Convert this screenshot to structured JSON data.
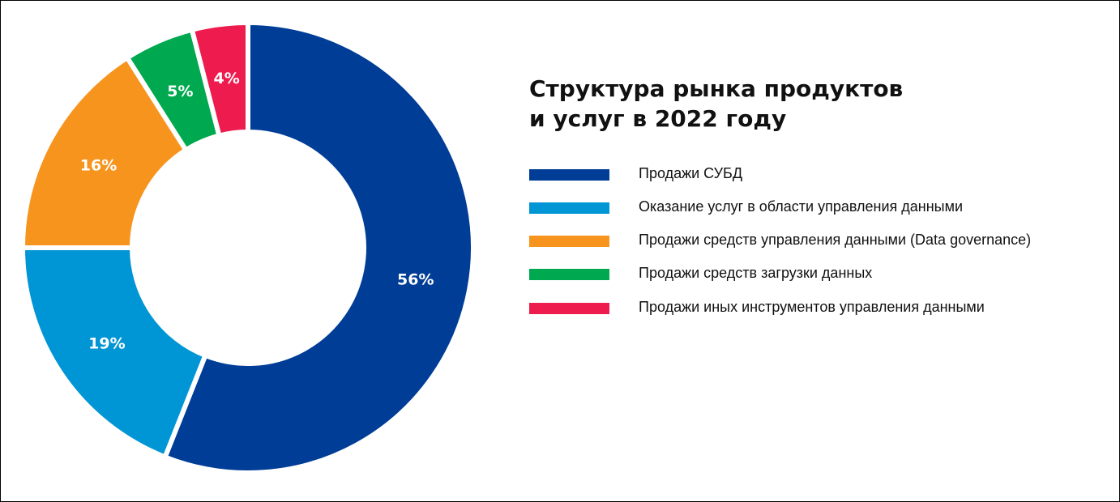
{
  "chart_data": {
    "type": "pie",
    "title_lines": [
      "Структура рынка продуктов",
      "и услуг в 2022 году"
    ],
    "legend_placement": "right",
    "slices": [
      {
        "name": "Продажи СУБД",
        "value": 56,
        "label": "56%",
        "color": "#003D96"
      },
      {
        "name": "Оказание услуг в области управления данными",
        "value": 19,
        "label": "19%",
        "color": "#0095D5"
      },
      {
        "name": "Продажи средств управления данными (Data governance)",
        "value": 16,
        "label": "16%",
        "color": "#F7941D"
      },
      {
        "name": "Продажи средств загрузки данных",
        "value": 5,
        "label": "5%",
        "color": "#00A94F"
      },
      {
        "name": "Продажи иных инструментов управления данными",
        "value": 4,
        "label": "4%",
        "color": "#EE1C4E"
      }
    ]
  }
}
